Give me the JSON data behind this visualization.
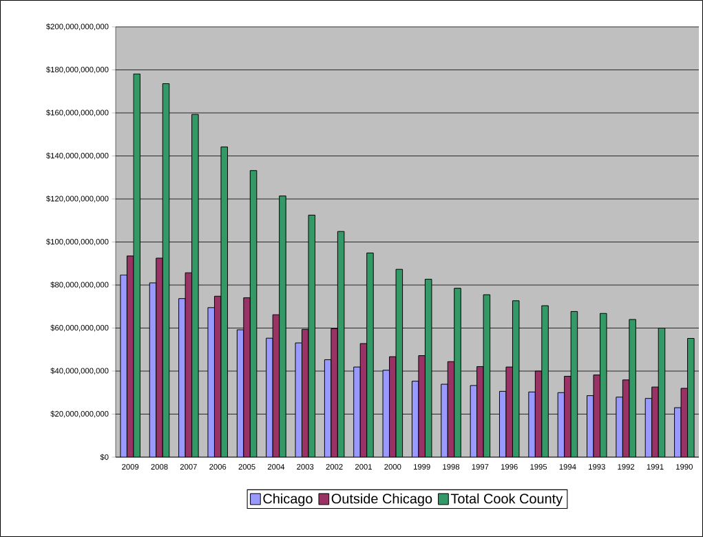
{
  "chart_data": {
    "type": "bar",
    "categories": [
      "2009",
      "2008",
      "2007",
      "2006",
      "2005",
      "2004",
      "2003",
      "2002",
      "2001",
      "2000",
      "1999",
      "1998",
      "1997",
      "1996",
      "1995",
      "1994",
      "1993",
      "1992",
      "1991",
      "1990"
    ],
    "series": [
      {
        "name": "Chicago",
        "color": "#9999ff",
        "values": [
          84700000000,
          81000000000,
          73700000000,
          69500000000,
          59200000000,
          55300000000,
          53100000000,
          45300000000,
          41900000000,
          40400000000,
          35300000000,
          33900000000,
          33300000000,
          30600000000,
          30300000000,
          30000000000,
          28600000000,
          27900000000,
          27300000000,
          23000000000
        ]
      },
      {
        "name": "Outside Chicago",
        "color": "#993366",
        "values": [
          93500000000,
          92500000000,
          85700000000,
          74800000000,
          74100000000,
          66200000000,
          59400000000,
          59700000000,
          52800000000,
          46700000000,
          47200000000,
          44400000000,
          42100000000,
          41900000000,
          40000000000,
          37600000000,
          38200000000,
          35900000000,
          32600000000,
          32000000000
        ]
      },
      {
        "name": "Total Cook County",
        "color": "#339966",
        "values": [
          178100000000,
          173600000000,
          159300000000,
          144200000000,
          133200000000,
          121400000000,
          112500000000,
          104900000000,
          94900000000,
          87300000000,
          82700000000,
          78500000000,
          75500000000,
          72700000000,
          70400000000,
          67700000000,
          66800000000,
          64000000000,
          60000000000,
          55200000000
        ]
      }
    ],
    "ylim": [
      0,
      200000000000
    ],
    "yticks": [
      {
        "value": 0,
        "label": "$0"
      },
      {
        "value": 20000000000,
        "label": "$20,000,000,000"
      },
      {
        "value": 40000000000,
        "label": "$40,000,000,000"
      },
      {
        "value": 60000000000,
        "label": "$60,000,000,000"
      },
      {
        "value": 80000000000,
        "label": "$80,000,000,000"
      },
      {
        "value": 100000000000,
        "label": "$100,000,000,000"
      },
      {
        "value": 120000000000,
        "label": "$120,000,000,000"
      },
      {
        "value": 140000000000,
        "label": "$140,000,000,000"
      },
      {
        "value": 160000000000,
        "label": "$160,000,000,000"
      },
      {
        "value": 180000000000,
        "label": "$180,000,000,000"
      },
      {
        "value": 200000000000,
        "label": "$200,000,000,000"
      }
    ],
    "grid": "y",
    "legend": "bottom"
  }
}
